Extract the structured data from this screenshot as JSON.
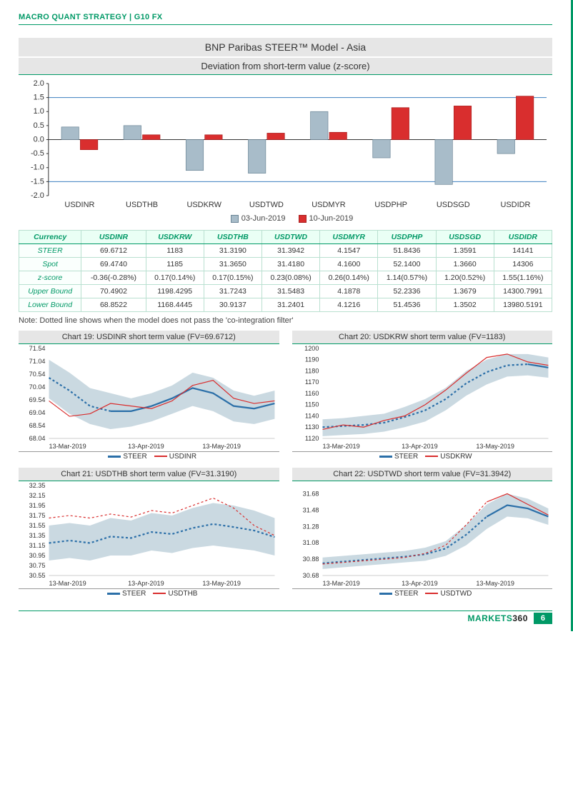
{
  "header": "MACRO QUANT STRATEGY | G10 FX",
  "main_title": "BNP Paribas STEER™ Model - Asia",
  "subtitle": "Deviation from short-term value (z-score)",
  "bar_chart": {
    "categories": [
      "USDINR",
      "USDTHB",
      "USDKRW",
      "USDTWD",
      "USDMYR",
      "USDPHP",
      "USDSGD",
      "USDIDR"
    ],
    "series": [
      {
        "label": "03-Jun-2019",
        "color": "#a8bcc9",
        "stroke": "#6b8596",
        "values": [
          0.45,
          0.5,
          -1.1,
          -1.2,
          1.0,
          -0.65,
          -1.6,
          -0.5
        ]
      },
      {
        "label": "10-Jun-2019",
        "color": "#d92e2e",
        "stroke": "#a81e1e",
        "values": [
          -0.36,
          0.17,
          0.17,
          0.23,
          0.26,
          1.14,
          1.2,
          1.55
        ]
      }
    ],
    "ylim": [
      -2.0,
      2.0
    ],
    "ytick_step": 0.5,
    "ref_lines": [
      1.5,
      -1.5
    ],
    "ref_color": "#3b7fbf",
    "axis_color": "#333",
    "label_fontsize": 11
  },
  "table": {
    "columns": [
      "Currency",
      "USDINR",
      "USDKRW",
      "USDTHB",
      "USDTWD",
      "USDMYR",
      "USDPHP",
      "USDSGD",
      "USDIDR"
    ],
    "rows": [
      [
        "STEER",
        "69.6712",
        "1183",
        "31.3190",
        "31.3942",
        "4.1547",
        "51.8436",
        "1.3591",
        "14141"
      ],
      [
        "Spot",
        "69.4740",
        "1185",
        "31.3650",
        "31.4180",
        "4.1600",
        "52.1400",
        "1.3660",
        "14306"
      ],
      [
        "z-score",
        "-0.36(-0.28%)",
        "0.17(0.14%)",
        "0.17(0.15%)",
        "0.23(0.08%)",
        "0.26(0.14%)",
        "1.14(0.57%)",
        "1.20(0.52%)",
        "1.55(1.16%)"
      ],
      [
        "Upper Bound",
        "70.4902",
        "1198.4295",
        "31.7243",
        "31.5483",
        "4.1878",
        "52.2336",
        "1.3679",
        "14300.7991"
      ],
      [
        "Lower Bound",
        "68.8522",
        "1168.4445",
        "30.9137",
        "31.2401",
        "4.1216",
        "51.4536",
        "1.3502",
        "13980.5191"
      ]
    ]
  },
  "note": "Note: Dotted line shows when the model does not pass the 'co-integration filter'",
  "mini_charts": [
    {
      "title": "Chart 19: USDINR short term value (FV=69.6712)",
      "series2_label": "USDINR",
      "ylim": [
        68.04,
        71.54
      ],
      "yticks": [
        68.04,
        68.54,
        69.04,
        69.54,
        70.04,
        70.54,
        71.04,
        71.54
      ],
      "xticks": [
        "13-Mar-2019",
        "13-Apr-2019",
        "13-May-2019"
      ],
      "band_top": [
        71.1,
        70.6,
        70.0,
        69.8,
        69.6,
        69.8,
        70.1,
        70.6,
        70.4,
        69.9,
        69.7,
        69.9
      ],
      "band_bot": [
        69.6,
        69.0,
        68.6,
        68.4,
        68.5,
        68.7,
        69.0,
        69.3,
        69.1,
        68.7,
        68.6,
        68.8
      ],
      "steer": [
        70.4,
        69.9,
        69.3,
        69.1,
        69.1,
        69.3,
        69.6,
        70.0,
        69.8,
        69.3,
        69.2,
        69.4
      ],
      "spot": [
        69.5,
        68.9,
        69.0,
        69.4,
        69.3,
        69.2,
        69.5,
        70.1,
        70.3,
        69.6,
        69.4,
        69.5
      ],
      "steer_dotted_until": 3
    },
    {
      "title": "Chart 20: USDKRW short term value (FV=1183)",
      "series2_label": "USDKRW",
      "ylim": [
        1120,
        1200
      ],
      "yticks": [
        1120,
        1130,
        1140,
        1150,
        1160,
        1170,
        1180,
        1190,
        1200
      ],
      "xticks": [
        "13-Mar-2019",
        "13-Apr-2019",
        "13-May-2019"
      ],
      "band_top": [
        1137,
        1138,
        1140,
        1142,
        1148,
        1155,
        1165,
        1180,
        1190,
        1195,
        1195,
        1192
      ],
      "band_bot": [
        1122,
        1123,
        1124,
        1126,
        1130,
        1135,
        1145,
        1158,
        1168,
        1175,
        1176,
        1174
      ],
      "steer": [
        1130,
        1131,
        1132,
        1134,
        1139,
        1145,
        1155,
        1169,
        1179,
        1185,
        1186,
        1183
      ],
      "spot": [
        1128,
        1132,
        1130,
        1136,
        1140,
        1150,
        1163,
        1178,
        1192,
        1195,
        1188,
        1185
      ],
      "steer_dotted_until": 10
    },
    {
      "title": "Chart 21: USDTHB short term value (FV=31.3190)",
      "series2_label": "USDTHB",
      "ylim": [
        30.55,
        32.35
      ],
      "yticks": [
        30.55,
        30.75,
        30.95,
        31.15,
        31.35,
        31.55,
        31.75,
        31.95,
        32.15,
        32.35
      ],
      "xticks": [
        "13-Mar-2019",
        "13-Apr-2019",
        "13-May-2019"
      ],
      "band_top": [
        31.55,
        31.6,
        31.55,
        31.7,
        31.65,
        31.8,
        31.75,
        31.9,
        32.0,
        31.95,
        31.85,
        31.7
      ],
      "band_bot": [
        30.85,
        30.9,
        30.85,
        30.95,
        30.95,
        31.05,
        31.0,
        31.1,
        31.15,
        31.1,
        31.05,
        30.95
      ],
      "steer": [
        31.2,
        31.25,
        31.2,
        31.33,
        31.3,
        31.42,
        31.38,
        31.5,
        31.58,
        31.52,
        31.45,
        31.32
      ],
      "spot": [
        31.7,
        31.75,
        31.7,
        31.78,
        31.72,
        31.85,
        31.8,
        31.95,
        32.1,
        31.9,
        31.55,
        31.35
      ],
      "steer_dotted_until": 12,
      "spot_dotted_until": 12
    },
    {
      "title": "Chart 22: USDTWD short term value (FV=31.3942)",
      "series2_label": "USDTWD",
      "ylim": [
        30.68,
        31.78
      ],
      "yticks": [
        30.68,
        30.88,
        31.08,
        31.28,
        31.48,
        31.68
      ],
      "xticks": [
        "13-Mar-2019",
        "13-Apr-2019",
        "13-May-2019"
      ],
      "band_top": [
        30.9,
        30.92,
        30.94,
        30.96,
        30.98,
        31.02,
        31.1,
        31.3,
        31.55,
        31.68,
        31.62,
        31.5
      ],
      "band_bot": [
        30.76,
        30.78,
        30.8,
        30.82,
        30.84,
        30.86,
        30.92,
        31.05,
        31.25,
        31.4,
        31.38,
        31.3
      ],
      "steer": [
        30.83,
        30.85,
        30.87,
        30.89,
        30.91,
        30.94,
        31.01,
        31.18,
        31.4,
        31.54,
        31.5,
        31.4
      ],
      "spot": [
        30.82,
        30.84,
        30.86,
        30.88,
        30.9,
        30.95,
        31.05,
        31.3,
        31.58,
        31.68,
        31.55,
        31.42
      ],
      "steer_dotted_until": 8,
      "spot_dotted_until": 8
    }
  ],
  "mini_style": {
    "band_color": "#9fb9c9",
    "band_opacity": 0.55,
    "steer_color": "#2b6fa8",
    "steer_width": 2.2,
    "spot_color": "#d92e2e",
    "spot_width": 1.2,
    "axis_color": "#555",
    "grid_color": "#cfcfcf",
    "label_fontsize": 9
  },
  "footer": {
    "brand_left": "MARKETS",
    "brand_right": "360",
    "page": "6"
  }
}
